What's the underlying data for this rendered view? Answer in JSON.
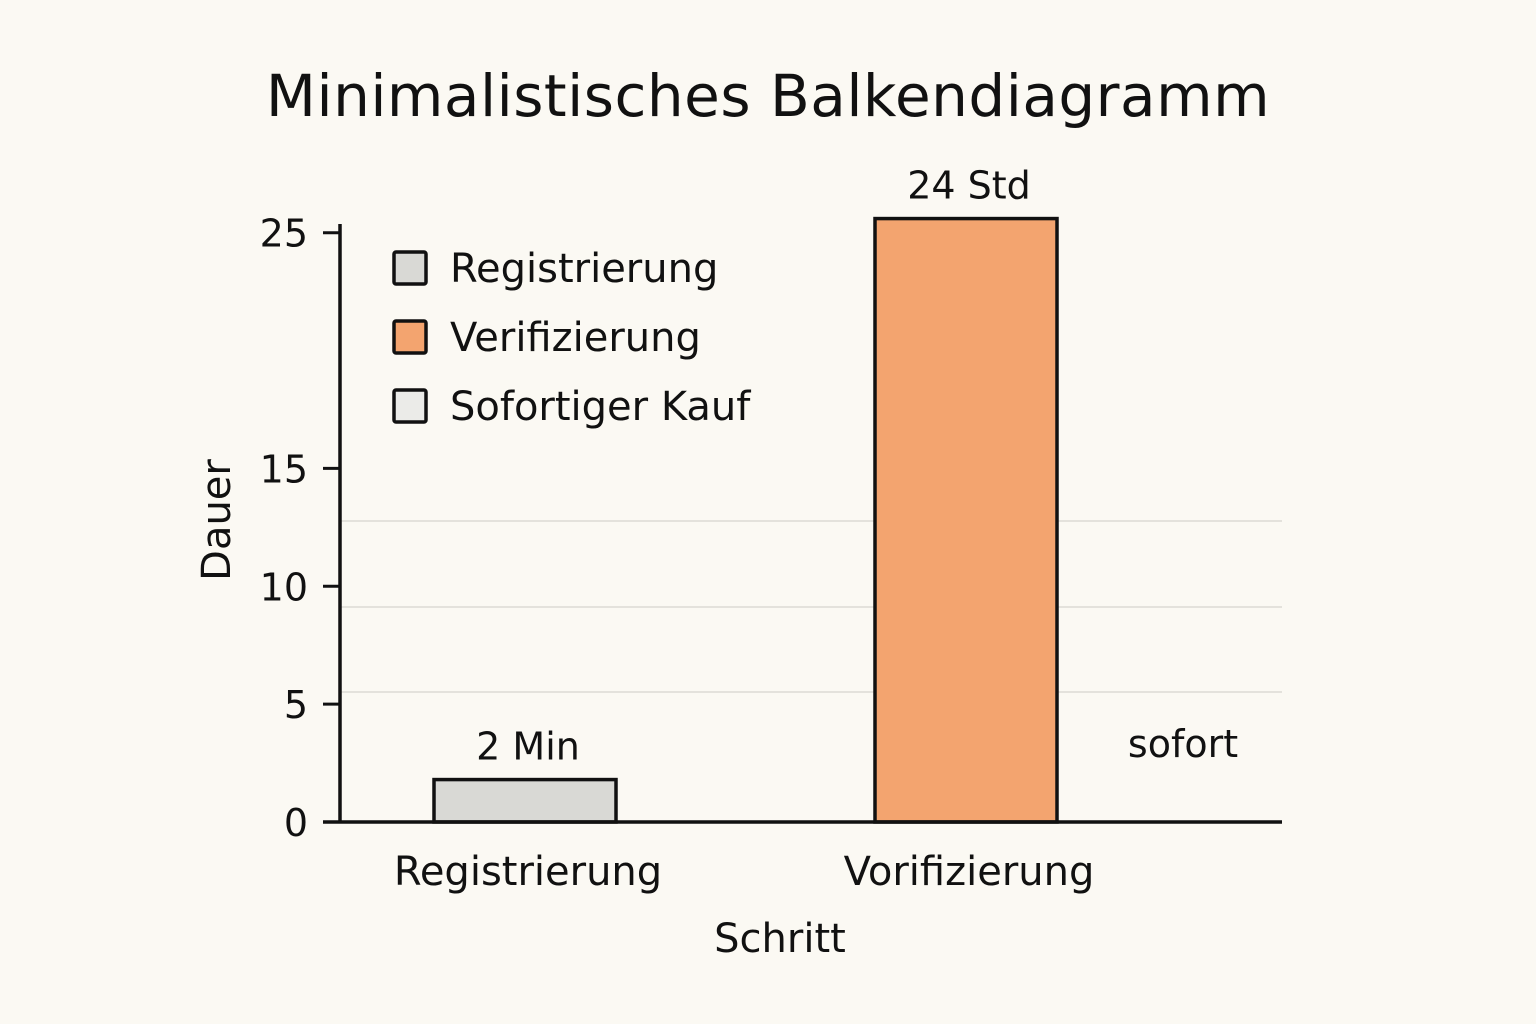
{
  "chart_title": "Minimalistisches Balkendiagramm",
  "chart_data": {
    "type": "bar",
    "title": "Minimalistisches Balkendiagramm",
    "xlabel": "Schritt",
    "ylabel": "Dauer",
    "ylim": [
      0,
      28
    ],
    "yticks": [
      0,
      5,
      10,
      15,
      25
    ],
    "grid": "faint horizontal lines",
    "legend_position": "top-left",
    "categories": [
      "Registrierung",
      "Vorifizierung",
      ""
    ],
    "values": [
      1.8,
      25.6,
      0
    ],
    "data_labels": [
      "2 Min",
      "24 Std",
      "sofort"
    ],
    "legend": [
      {
        "label": "Registrierung",
        "color": "#d9d9d5"
      },
      {
        "label": "Verifizierung",
        "color": "#f3a46f"
      },
      {
        "label": "Sofortiger Kauf",
        "color": "#ebebe8"
      }
    ],
    "bar_colors": [
      "#d9d9d5",
      "#f3a46f",
      "#ebebe8"
    ],
    "axis_color": "#111111",
    "grid_color": "#e4e2dc"
  }
}
